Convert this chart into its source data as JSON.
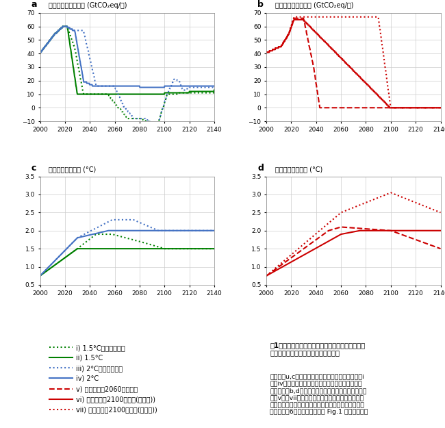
{
  "title_a": "温室効果ガス排出量 (GtCO₂eq/年)",
  "title_b": "温室効果ガス排出量 (GtCO₂eq/年)",
  "title_c": "世界平均気温上昇 (°C)",
  "title_d": "世界平均気温上昇 (°C)",
  "label_a": "a",
  "label_b": "b",
  "label_c": "c",
  "label_d": "d",
  "green_color": "#008000",
  "blue_color": "#4472C4",
  "red_color": "#CC0000",
  "leg_i": "i) 1.5°C（一時超過）",
  "leg_ii": "ii) 1.5°C",
  "leg_iii": "iii) 2°C（一時超過）",
  "leg_iv": "iv) 2°C",
  "leg_v": "v) ゼロ排出（2060年達成）",
  "leg_vi": "vi) ゼロ排出（2100年達成(漸進型))",
  "leg_vii": "vii) ゼロ排出（2100年達成(終盤型))",
  "cap_bold": "図1　代表的なケースの混室効果ガス排出量と世界\n平均気温上昇（産業化以前を基準）。",
  "cap_body": "　パネルu,cは、温度目標を達成する場合（ケースi\nからiv）の温室効果ガス排出への影響を示していま\nす。パネロb,dは、ゼロ排出目標を達成する場合（ケ\nースvからvii）の気温への影響を示しています。温\n室効果ガスは二酸化炭素やメタンなど京都議定書の排\n出削減対豦6種類を考慮。論文 Fig.1 を一部抜粤。"
}
